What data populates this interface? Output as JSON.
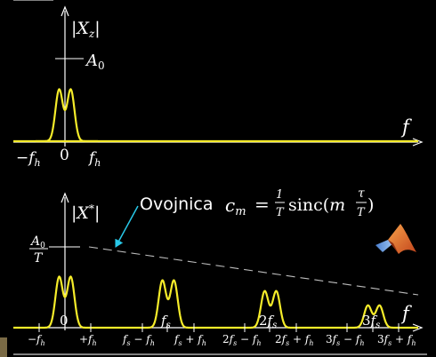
{
  "top_plot": {
    "y_label": "|X_z|",
    "x_label": "f",
    "level_label": "A_0",
    "ticks": [
      "−f_h",
      "0",
      "f_h"
    ]
  },
  "bottom_plot": {
    "y_label": "|X*|",
    "x_label": "f",
    "level_label_num": "A_0",
    "level_label_den": "T",
    "upper_ticks": [
      "0",
      "f_s",
      "2f_s",
      "3f_s"
    ],
    "lower_ticks": [
      "−f_h",
      "+f_h",
      "f_s − f_h",
      "f_s + f_h",
      "2f_s − f_h",
      "2f_s + f_h",
      "3f_s − f_h",
      "3f_s + f_h"
    ]
  },
  "callout": {
    "text": "Ovojnica",
    "formula": "c_m = 1/T sinc(m τ/T)"
  },
  "colors": {
    "background": "#000000",
    "curve": "#f5ec2a",
    "axis": "#ffffff",
    "arrow": "#28c8e8",
    "envelope": "#bdbdbd"
  },
  "logo": "matlab-logo-icon"
}
